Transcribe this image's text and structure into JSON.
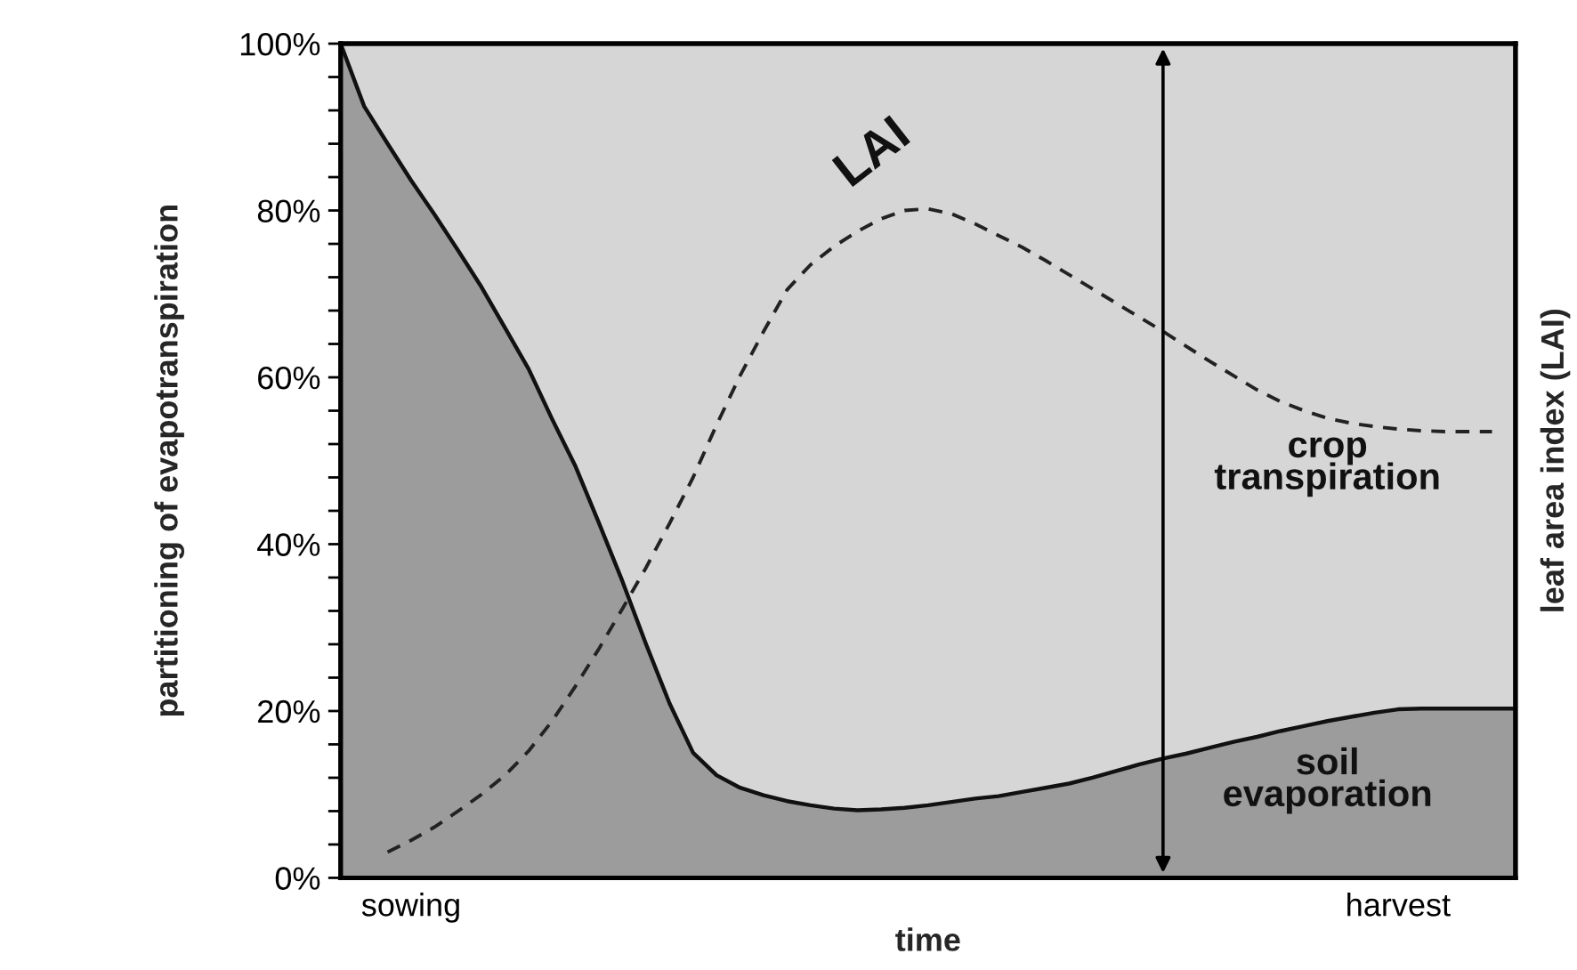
{
  "chart_data": {
    "type": "area",
    "stacked": true,
    "legend": false,
    "xlabel": "time",
    "ylabel": "partitioning of evapotranspiration",
    "y2label": "leaf area index (LAI)",
    "categories": [
      null,
      null,
      null,
      "sowing",
      null,
      null,
      null,
      null,
      null,
      null,
      null,
      null,
      null,
      null,
      null,
      null,
      null,
      null,
      null,
      null,
      null,
      null,
      null,
      null,
      null,
      null,
      null,
      null,
      null,
      null,
      null,
      null,
      null,
      null,
      null,
      null,
      null,
      null,
      null,
      null,
      null,
      null,
      null,
      null,
      null,
      "harvest",
      null,
      null,
      null,
      null,
      null
    ],
    "series": [
      {
        "name": "soil evaporation",
        "color": "#9c9c9c",
        "values": [
          100,
          92.5,
          88,
          83.6,
          79.5,
          75.2,
          70.8,
          65.9,
          61,
          55,
          49.3,
          42.5,
          35.5,
          28,
          20.9,
          15,
          12.3,
          10.8,
          9.9,
          9.2,
          8.7,
          8.3,
          8.1,
          8.2,
          8.4,
          8.7,
          9.1,
          9.5,
          9.8,
          10.3,
          10.8,
          11.3,
          12,
          12.8,
          13.6,
          14.3,
          14.9,
          15.6,
          16.3,
          16.9,
          17.6,
          18.2,
          18.8,
          19.3,
          19.8,
          20.2,
          20.3,
          20.3,
          20.3,
          20.3,
          20.3
        ]
      },
      {
        "name": "crop transpiration",
        "color": "#d6d6d6",
        "values": [
          0,
          7.5,
          12,
          16.4,
          20.5,
          24.8,
          29.2,
          34.1,
          39,
          45,
          50.7,
          57.5,
          64.5,
          72,
          79.1,
          85,
          87.7,
          89.2,
          90.1,
          90.8,
          91.3,
          91.7,
          91.9,
          91.8,
          91.6,
          91.3,
          90.9,
          90.5,
          90.2,
          89.7,
          89.2,
          88.7,
          88,
          87.2,
          86.4,
          85.7,
          85.1,
          84.4,
          83.7,
          83.1,
          82.4,
          81.8,
          81.2,
          80.7,
          80.2,
          79.8,
          79.7,
          79.7,
          79.7,
          79.7,
          79.7
        ]
      },
      {
        "name": "LAI",
        "type": "line",
        "color": "#222222",
        "line_style": "dashed",
        "values": [
          null,
          null,
          3.1,
          4.5,
          6.1,
          8,
          10,
          12.3,
          15.2,
          18.8,
          23,
          27.5,
          32.3,
          37.2,
          42.5,
          48,
          54.3,
          60.2,
          65.5,
          70.5,
          73.5,
          75.7,
          77.5,
          79,
          80,
          80.2,
          79.6,
          78.4,
          77,
          75.6,
          74,
          72.3,
          70.6,
          68.9,
          67.2,
          65.5,
          63.7,
          61.9,
          60.2,
          58.5,
          57.1,
          56,
          55.1,
          54.5,
          54.1,
          53.8,
          53.6,
          53.5,
          53.5,
          53.5,
          null
        ]
      }
    ],
    "ylim": [
      0,
      100
    ],
    "yticks": [
      {
        "value": 0,
        "label": "0%"
      },
      {
        "value": 4,
        "label": null
      },
      {
        "value": 8,
        "label": null
      },
      {
        "value": 12,
        "label": null
      },
      {
        "value": 16,
        "label": null
      },
      {
        "value": 20,
        "label": "20%"
      },
      {
        "value": 24,
        "label": null
      },
      {
        "value": 28,
        "label": null
      },
      {
        "value": 32,
        "label": null
      },
      {
        "value": 36,
        "label": null
      },
      {
        "value": 40,
        "label": "40%"
      },
      {
        "value": 44,
        "label": null
      },
      {
        "value": 48,
        "label": null
      },
      {
        "value": 52,
        "label": null
      },
      {
        "value": 56,
        "label": null
      },
      {
        "value": 60,
        "label": "60%"
      },
      {
        "value": 64,
        "label": null
      },
      {
        "value": 68,
        "label": null
      },
      {
        "value": 72,
        "label": null
      },
      {
        "value": 76,
        "label": null
      },
      {
        "value": 80,
        "label": "80%"
      },
      {
        "value": 84,
        "label": null
      },
      {
        "value": 88,
        "label": null
      },
      {
        "value": 92,
        "label": null
      },
      {
        "value": 96,
        "label": null
      },
      {
        "value": 100,
        "label": "100%"
      }
    ],
    "tick_labels": "y"
  }
}
